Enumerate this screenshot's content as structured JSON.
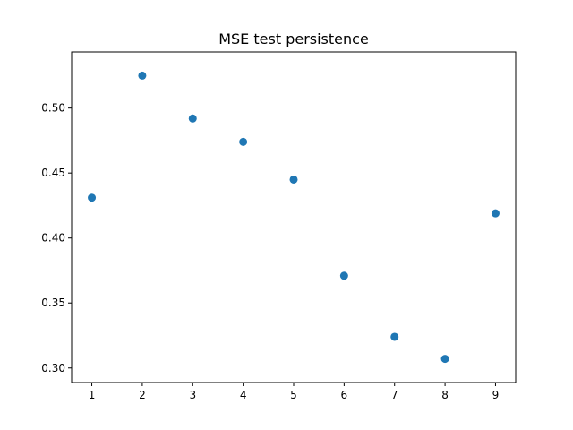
{
  "chart_data": {
    "type": "scatter",
    "title": "MSE test persistence",
    "xlabel": "",
    "ylabel": "",
    "x": [
      1,
      2,
      3,
      4,
      5,
      6,
      7,
      8,
      9
    ],
    "y": [
      0.431,
      0.525,
      0.492,
      0.474,
      0.445,
      0.371,
      0.324,
      0.307,
      0.419
    ],
    "xlim": [
      0.6,
      9.4
    ],
    "ylim": [
      0.2888,
      0.5432
    ],
    "xticks": [
      1,
      2,
      3,
      4,
      5,
      6,
      7,
      8,
      9
    ],
    "xtick_labels": [
      "1",
      "2",
      "3",
      "4",
      "5",
      "6",
      "7",
      "8",
      "9"
    ],
    "yticks": [
      0.3,
      0.35,
      0.4,
      0.45,
      0.5
    ],
    "ytick_labels": [
      "0.30",
      "0.35",
      "0.40",
      "0.45",
      "0.50"
    ],
    "marker_color": "#1f77b4",
    "grid": false,
    "legend": "none"
  }
}
